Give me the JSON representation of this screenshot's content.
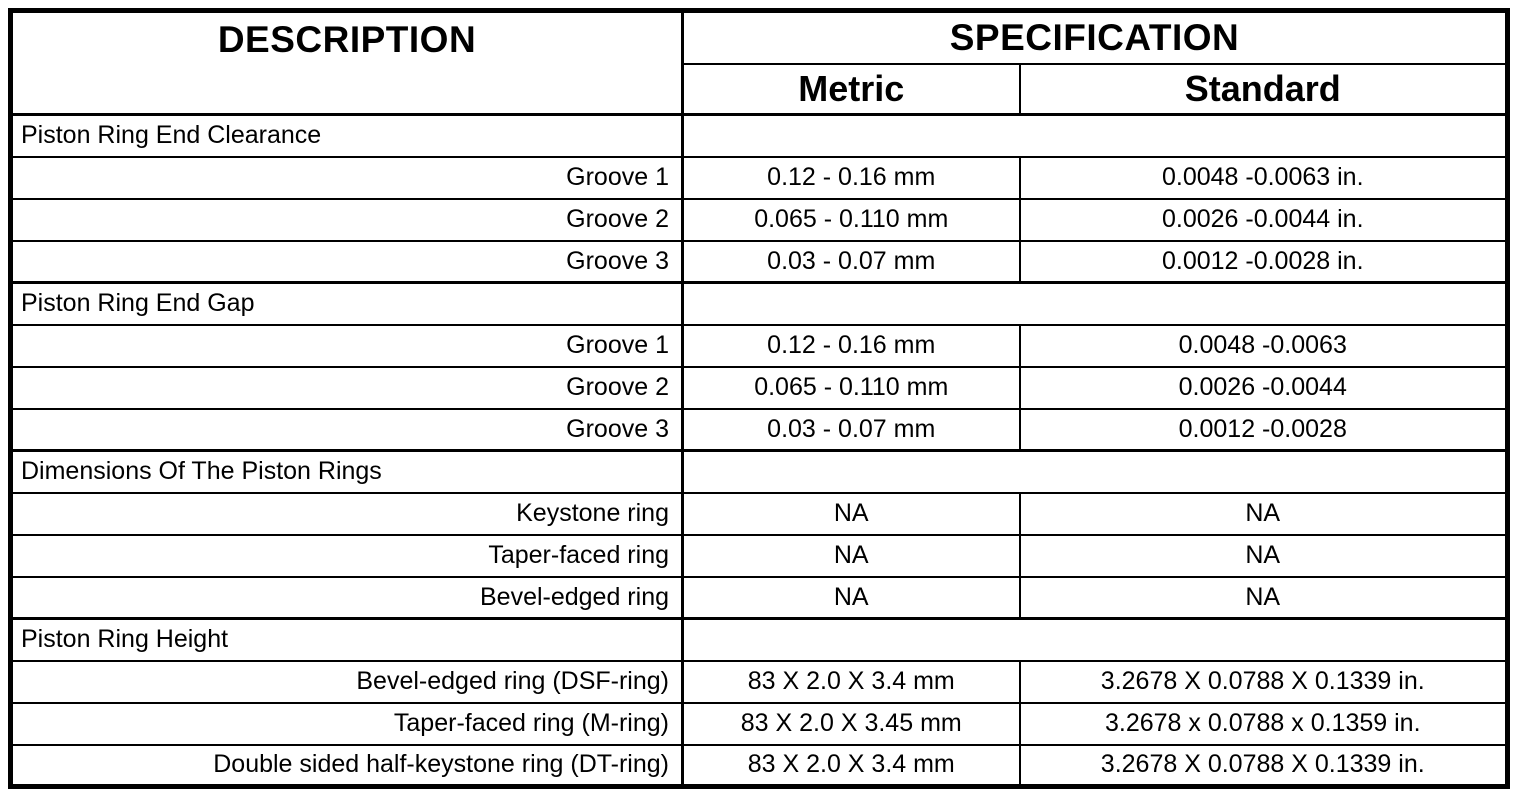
{
  "colors": {
    "border": "#000000",
    "background": "#ffffff",
    "text": "#000000"
  },
  "table": {
    "header": {
      "description": "DESCRIPTION",
      "specification": "SPECIFICATION",
      "metric": "Metric",
      "standard": "Standard"
    },
    "sections": [
      {
        "title": "Piston Ring End Clearance",
        "rows": [
          {
            "label": "Groove 1",
            "metric": "0.12 - 0.16 mm",
            "standard": "0.0048 -0.0063 in."
          },
          {
            "label": "Groove 2",
            "metric": "0.065 - 0.110 mm",
            "standard": "0.0026 -0.0044 in."
          },
          {
            "label": "Groove 3",
            "metric": "0.03 - 0.07 mm",
            "standard": "0.0012 -0.0028 in."
          }
        ]
      },
      {
        "title": "Piston Ring End Gap",
        "rows": [
          {
            "label": "Groove 1",
            "metric": "0.12 - 0.16 mm",
            "standard": "0.0048 -0.0063"
          },
          {
            "label": "Groove 2",
            "metric": "0.065 - 0.110 mm",
            "standard": "0.0026 -0.0044"
          },
          {
            "label": "Groove 3",
            "metric": "0.03 - 0.07 mm",
            "standard": "0.0012 -0.0028"
          }
        ]
      },
      {
        "title": "Dimensions Of The Piston Rings",
        "rows": [
          {
            "label": "Keystone ring",
            "metric": "NA",
            "standard": "NA"
          },
          {
            "label": "Taper-faced ring",
            "metric": "NA",
            "standard": "NA"
          },
          {
            "label": "Bevel-edged ring",
            "metric": "NA",
            "standard": "NA"
          }
        ]
      },
      {
        "title": "Piston Ring Height",
        "rows": [
          {
            "label": "Bevel-edged ring (DSF-ring)",
            "metric": "83 X 2.0 X 3.4 mm",
            "standard": "3.2678 X 0.0788 X 0.1339 in."
          },
          {
            "label": "Taper-faced ring (M-ring)",
            "metric": "83 X 2.0 X 3.45 mm",
            "standard": "3.2678 x 0.0788 x 0.1359 in."
          },
          {
            "label": "Double sided half-keystone ring (DT-ring)",
            "metric": "83 X 2.0 X 3.4 mm",
            "standard": "3.2678 X 0.0788 X 0.1339 in."
          }
        ]
      }
    ]
  }
}
